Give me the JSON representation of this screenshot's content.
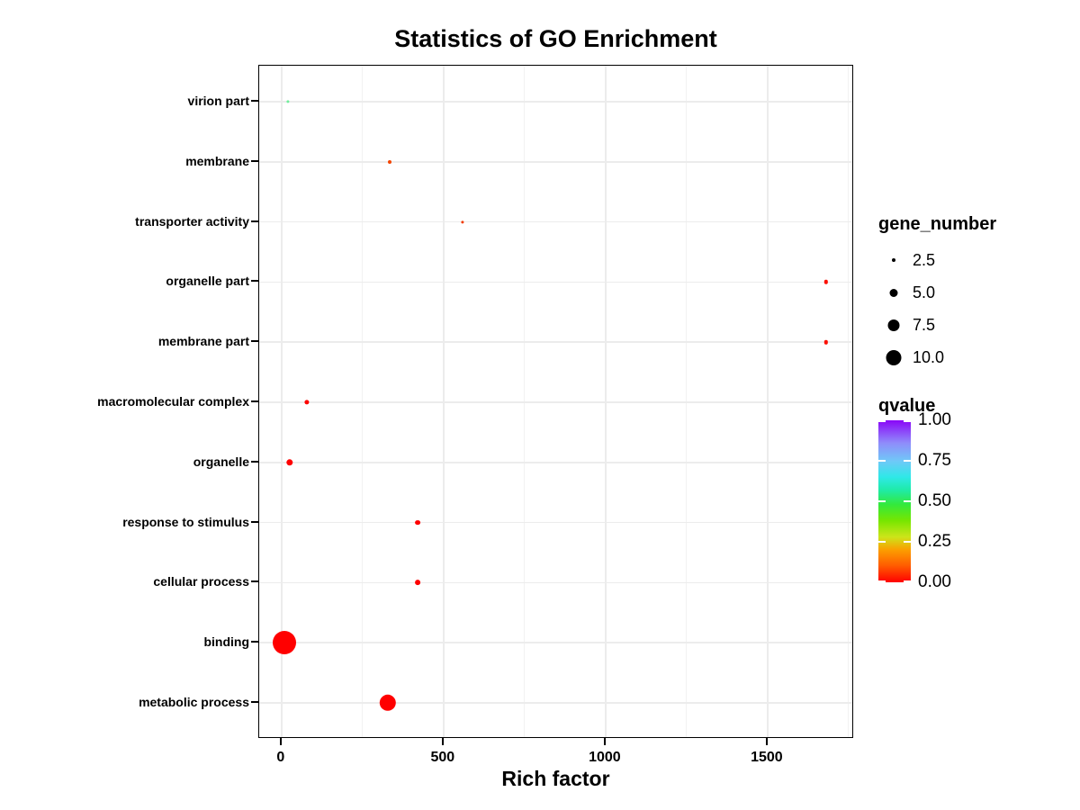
{
  "title": "Statistics of GO Enrichment",
  "chart_data": {
    "type": "scatter",
    "title": "Statistics of GO Enrichment",
    "xlabel": "Rich factor",
    "ylabel": "",
    "x_ticks": [
      0,
      500,
      1000,
      1500
    ],
    "x_minor_ticks": [
      250,
      750,
      1250,
      1750
    ],
    "xlim": [
      -69,
      1767
    ],
    "grid": "on",
    "categories": [
      "virion part",
      "membrane",
      "transporter activity",
      "organelle part",
      "membrane part",
      "macromolecular complex",
      "organelle",
      "response to stimulus",
      "cellular process",
      "binding",
      "metabolic process"
    ],
    "points": [
      {
        "term": "virion part",
        "rich_factor": 20,
        "gene_number": 1,
        "qvalue": 0.45,
        "color": "#6FEE9B",
        "radius_px": 1.6
      },
      {
        "term": "membrane",
        "rich_factor": 335,
        "gene_number": 2,
        "qvalue": 0.05,
        "color": "#F44400",
        "radius_px": 2.0
      },
      {
        "term": "transporter activity",
        "rich_factor": 558,
        "gene_number": 1.5,
        "qvalue": 0.05,
        "color": "#F23B00",
        "radius_px": 1.6
      },
      {
        "term": "organelle part",
        "rich_factor": 1680,
        "gene_number": 2,
        "qvalue": 0.01,
        "color": "#FC0E00",
        "radius_px": 2.2
      },
      {
        "term": "membrane part",
        "rich_factor": 1680,
        "gene_number": 2,
        "qvalue": 0.01,
        "color": "#FC0E00",
        "radius_px": 2.2
      },
      {
        "term": "macromolecular complex",
        "rich_factor": 78,
        "gene_number": 2.5,
        "qvalue": 0.0,
        "color": "#FD0400",
        "radius_px": 2.6
      },
      {
        "term": "organelle",
        "rich_factor": 25,
        "gene_number": 3.5,
        "qvalue": 0.0,
        "color": "#FE0000",
        "radius_px": 3.7
      },
      {
        "term": "response to stimulus",
        "rich_factor": 420,
        "gene_number": 3,
        "qvalue": 0.0,
        "color": "#FE0000",
        "radius_px": 2.9
      },
      {
        "term": "cellular process",
        "rich_factor": 420,
        "gene_number": 3,
        "qvalue": 0.0,
        "color": "#FE0000",
        "radius_px": 2.9
      },
      {
        "term": "binding",
        "rich_factor": 10,
        "gene_number": 11,
        "qvalue": 0.0,
        "color": "#FF0000",
        "radius_px": 13
      },
      {
        "term": "metabolic process",
        "rich_factor": 328,
        "gene_number": 8,
        "qvalue": 0.0,
        "color": "#FF0000",
        "radius_px": 9.2
      }
    ],
    "legend_size": {
      "title": "gene_number",
      "breaks": [
        {
          "label": "2.5",
          "radius_px": 2.0
        },
        {
          "label": "5.0",
          "radius_px": 4.5
        },
        {
          "label": "7.5",
          "radius_px": 6.5
        },
        {
          "label": "10.0",
          "radius_px": 8.5
        }
      ]
    },
    "legend_color": {
      "title": "qvalue",
      "ticks": [
        {
          "label": "1.00",
          "value": 1.0
        },
        {
          "label": "0.75",
          "value": 0.75
        },
        {
          "label": "0.50",
          "value": 0.5
        },
        {
          "label": "0.25",
          "value": 0.25
        },
        {
          "label": "0.00",
          "value": 0.0
        }
      ],
      "gradient_bottom_to_top": [
        {
          "pos": 0.0,
          "color": "#FF0000"
        },
        {
          "pos": 0.1,
          "color": "#FF5A00"
        },
        {
          "pos": 0.2,
          "color": "#FC9E00"
        },
        {
          "pos": 0.28,
          "color": "#CCE51A"
        },
        {
          "pos": 0.38,
          "color": "#77E600"
        },
        {
          "pos": 0.48,
          "color": "#33E93C"
        },
        {
          "pos": 0.57,
          "color": "#1FEBA8"
        },
        {
          "pos": 0.65,
          "color": "#2FE8E8"
        },
        {
          "pos": 0.75,
          "color": "#70C8F8"
        },
        {
          "pos": 0.86,
          "color": "#8F8CFA"
        },
        {
          "pos": 1.0,
          "color": "#8A06F8"
        }
      ]
    }
  }
}
